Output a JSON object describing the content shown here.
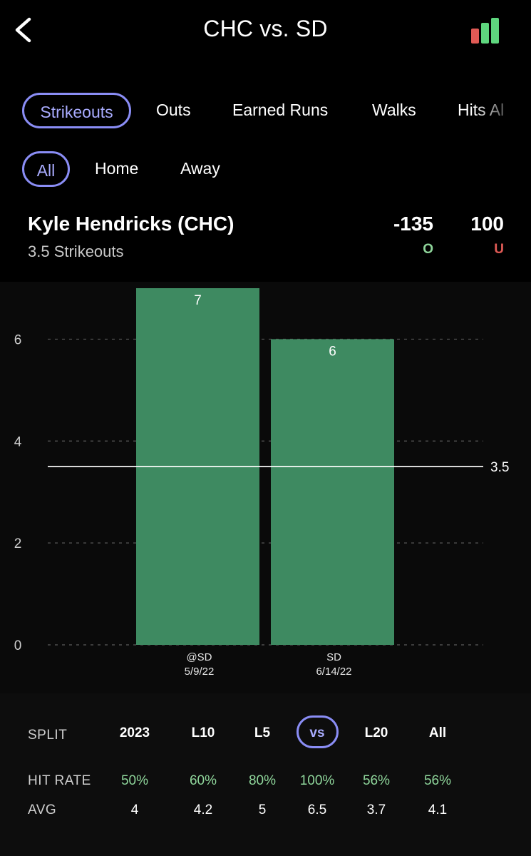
{
  "header": {
    "title": "CHC vs. SD",
    "back_icon": "chevron-left-icon",
    "bars_icon": "bar-chart-icon",
    "bars_colors": [
      "#e05a55",
      "#5ed67e",
      "#5ed67e"
    ]
  },
  "stat_tabs": [
    {
      "label": "Strikeouts",
      "active": true
    },
    {
      "label": "Outs",
      "active": false
    },
    {
      "label": "Earned Runs",
      "active": false
    },
    {
      "label": "Walks",
      "active": false
    },
    {
      "label": "Hits Al",
      "active": false
    }
  ],
  "location_tabs": [
    {
      "label": "All",
      "active": true
    },
    {
      "label": "Home",
      "active": false
    },
    {
      "label": "Away",
      "active": false
    }
  ],
  "player": {
    "name": "Kyle Hendricks (CHC)",
    "prop_line": "3.5 Strikeouts",
    "over_odds": "-135",
    "over_label": "O",
    "under_odds": "100",
    "under_label": "U"
  },
  "chart_data": {
    "type": "bar",
    "categories": [
      "@SD\n5/9/22",
      "SD\n6/14/22"
    ],
    "category_lines": [
      [
        "@SD",
        "5/9/22"
      ],
      [
        "SD",
        "6/14/22"
      ]
    ],
    "values": [
      7,
      6
    ],
    "data_labels": [
      "7",
      "6"
    ],
    "ylim": [
      0,
      7.5
    ],
    "yticks": [
      0,
      2,
      4,
      6
    ],
    "ytick_labels": [
      "0",
      "2",
      "4",
      "6"
    ],
    "reference_line": {
      "value": 3.5,
      "label": "3.5"
    },
    "grid": true,
    "bar_color": "#3e8a61"
  },
  "splits": {
    "row_label": "SPLIT",
    "columns": [
      "2023",
      "L10",
      "L5",
      "vs",
      "L20",
      "All"
    ],
    "active": "vs",
    "hit_rate_label": "HIT RATE",
    "hit_rates": [
      "50%",
      "60%",
      "80%",
      "100%",
      "56%",
      "56%"
    ],
    "avg_label": "AVG",
    "avgs": [
      "4",
      "4.2",
      "5",
      "6.5",
      "3.7",
      "4.1"
    ]
  },
  "colors": {
    "accent": "#8a8df5",
    "over": "#8fd69b",
    "under": "#e05a55",
    "bar": "#3e8a61"
  }
}
